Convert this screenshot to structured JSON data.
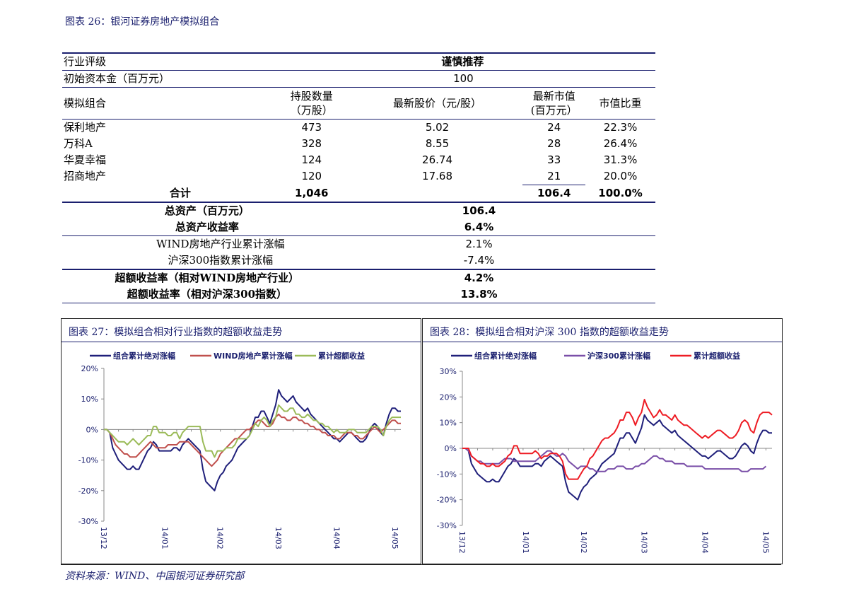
{
  "header": {
    "title": "图表 26：银河证券房地产模拟组合"
  },
  "portfolio": {
    "rating_label": "行业评级",
    "rating_value": "谨慎推荐",
    "capital_label": "初始资本金（百万元）",
    "capital_value": "100",
    "columns": {
      "portfolio": "模拟组合",
      "shares_line1": "持股数量",
      "shares_line2": "（万股）",
      "price": "最新股价（元/股）",
      "mktval_line1": "最新市值",
      "mktval_line2": "(百万元）",
      "weight": "市值比重"
    },
    "rows": [
      {
        "name": "保利地产",
        "shares": "473",
        "price": "5.02",
        "mktval": "24",
        "weight": "22.3%"
      },
      {
        "name": "万科A",
        "shares": "328",
        "price": "8.55",
        "mktval": "28",
        "weight": "26.4%"
      },
      {
        "name": "华夏幸福",
        "shares": "124",
        "price": "26.74",
        "mktval": "33",
        "weight": "31.3%"
      },
      {
        "name": "招商地产",
        "shares": "120",
        "price": "17.68",
        "mktval": "21",
        "weight": "20.0%"
      }
    ],
    "total": {
      "label": "合计",
      "shares": "1,046",
      "mktval": "106.4",
      "weight": "100.0%"
    },
    "summary": [
      {
        "label": "总资产（百万元）",
        "value": "106.4",
        "bold": true
      },
      {
        "label": "总资产收益率",
        "value": "6.4%",
        "bold": true
      },
      {
        "label": "WIND房地产行业累计涨幅",
        "value": "2.1%",
        "bold": false
      },
      {
        "label": "沪深300指数累计涨幅",
        "value": "-7.4%",
        "bold": false
      },
      {
        "label": "超额收益率（相对WIND房地产行业）",
        "value": "4.2%",
        "bold": true
      },
      {
        "label": "超额收益率（相对沪深300指数）",
        "value": "13.8%",
        "bold": true
      }
    ]
  },
  "source": "资料来源：WIND、中国银河证券研究部",
  "chart_data": [
    {
      "type": "line",
      "title": "图表 27：模拟组合相对行业指数的超额收益走势",
      "ylim": [
        -30,
        20
      ],
      "yticks": [
        "20%",
        "10%",
        "0%",
        "-10%",
        "-20%",
        "-30%"
      ],
      "ytick_values": [
        20,
        10,
        0,
        -10,
        -20,
        -30
      ],
      "xtick_labels": [
        "13/12",
        "14/01",
        "14/02",
        "14/03",
        "14/04",
        "14/05"
      ],
      "xtick_positions": [
        0,
        21,
        40,
        60,
        80,
        100
      ],
      "legend_position": "top",
      "series": [
        {
          "name": "组合累计绝对涨幅",
          "color": "#1f1f7a",
          "values": [
            0,
            0,
            -1,
            -6,
            -8,
            -10,
            -11,
            -12,
            -13,
            -13,
            -12,
            -13,
            -13,
            -11,
            -9,
            -7,
            -6,
            -4,
            -5,
            -7,
            -7,
            -7,
            -7,
            -7,
            -6,
            -6,
            -7,
            -5,
            -4,
            -3,
            -4,
            -5,
            -6,
            -7,
            -13,
            -17,
            -18,
            -19,
            -20,
            -17,
            -15,
            -14,
            -12,
            -11,
            -10,
            -8,
            -6,
            -5,
            -4,
            -3,
            -2,
            1,
            4,
            4,
            6,
            6,
            4,
            2,
            5,
            8,
            13,
            11,
            10,
            9,
            10,
            11,
            9,
            8,
            7,
            6,
            7,
            5,
            4,
            3,
            2,
            1,
            0,
            -1,
            -2,
            -3,
            -3,
            -4,
            -3,
            -2,
            -1,
            -1,
            -2,
            -3,
            -4,
            -4,
            -3,
            -1,
            1,
            2,
            1,
            -1,
            -2,
            2,
            5,
            7,
            7,
            6,
            6
          ]
        },
        {
          "name": "WIND房地产累计涨幅",
          "color": "#c0504d",
          "values": [
            0,
            0,
            -1,
            -3,
            -5,
            -6,
            -7,
            -8,
            -8,
            -9,
            -9,
            -9,
            -8,
            -7,
            -6,
            -5,
            -4,
            -5,
            -6,
            -6,
            -6,
            -6,
            -5,
            -5,
            -5,
            -5,
            -4,
            -4,
            -4,
            -4,
            -5,
            -6,
            -7,
            -8,
            -9,
            -10,
            -11,
            -12,
            -11,
            -10,
            -8,
            -7,
            -6,
            -5,
            -4,
            -3,
            -3,
            -2,
            -1,
            0,
            0,
            1,
            2,
            3,
            3,
            2,
            1,
            1,
            2,
            4,
            5,
            4,
            4,
            3,
            3,
            4,
            4,
            3,
            3,
            2,
            2,
            1,
            1,
            0,
            0,
            -1,
            -1,
            -2,
            -2,
            -2,
            -3,
            -3,
            -2,
            -1,
            -1,
            -1,
            -2,
            -2,
            -3,
            -3,
            -2,
            -1,
            0,
            1,
            0,
            -1,
            0,
            1,
            2,
            3,
            3,
            2,
            2
          ]
        },
        {
          "name": "累计超额收益",
          "color": "#9bbb59",
          "values": [
            0,
            0,
            -1,
            -2,
            -3,
            -4,
            -4,
            -4,
            -5,
            -4,
            -3,
            -4,
            -5,
            -4,
            -3,
            -2,
            -2,
            1,
            1,
            -1,
            -1,
            -1,
            -2,
            -2,
            -1,
            -1,
            -3,
            -1,
            0,
            1,
            1,
            1,
            1,
            1,
            -4,
            -7,
            -7,
            -7,
            -9,
            -7,
            -7,
            -7,
            -6,
            -6,
            -6,
            -5,
            -3,
            -3,
            -3,
            -3,
            -2,
            0,
            2,
            1,
            3,
            4,
            3,
            1,
            3,
            4,
            8,
            7,
            6,
            6,
            7,
            7,
            5,
            5,
            4,
            4,
            5,
            4,
            3,
            3,
            2,
            2,
            1,
            1,
            0,
            -1,
            0,
            -1,
            -1,
            -1,
            0,
            0,
            0,
            -1,
            -1,
            -1,
            -1,
            0,
            1,
            1,
            1,
            0,
            -2,
            1,
            3,
            4,
            4,
            4,
            4
          ]
        }
      ]
    },
    {
      "type": "line",
      "title": "图表 28：模拟组合相对沪深 300 指数的超额收益走势",
      "ylim": [
        -30,
        30
      ],
      "yticks": [
        "30%",
        "20%",
        "10%",
        "0%",
        "-10%",
        "-20%",
        "-30%"
      ],
      "ytick_values": [
        30,
        20,
        10,
        0,
        -10,
        -20,
        -30
      ],
      "xtick_labels": [
        "13/12",
        "14/01",
        "14/02",
        "14/03",
        "14/04",
        "14/05"
      ],
      "xtick_positions": [
        0,
        21,
        40,
        60,
        80,
        100
      ],
      "legend_position": "top",
      "series": [
        {
          "name": "组合累计绝对涨幅",
          "color": "#1f1f7a",
          "values": [
            0,
            0,
            -1,
            -6,
            -8,
            -10,
            -11,
            -12,
            -13,
            -13,
            -12,
            -13,
            -13,
            -11,
            -9,
            -7,
            -6,
            -4,
            -5,
            -7,
            -7,
            -7,
            -7,
            -7,
            -6,
            -6,
            -7,
            -5,
            -4,
            -3,
            -4,
            -5,
            -6,
            -7,
            -13,
            -17,
            -18,
            -19,
            -20,
            -17,
            -15,
            -14,
            -12,
            -11,
            -10,
            -8,
            -6,
            -5,
            -4,
            -3,
            -2,
            1,
            4,
            4,
            6,
            6,
            4,
            2,
            5,
            8,
            13,
            11,
            10,
            9,
            10,
            11,
            9,
            8,
            7,
            6,
            7,
            5,
            4,
            3,
            2,
            1,
            0,
            -1,
            -2,
            -3,
            -3,
            -4,
            -3,
            -2,
            -1,
            -1,
            -2,
            -3,
            -4,
            -4,
            -3,
            -1,
            1,
            2,
            1,
            -1,
            -2,
            2,
            5,
            7,
            7,
            6,
            6
          ]
        },
        {
          "name": "沪深300累计涨幅",
          "color": "#7a4fa8",
          "values": [
            0,
            0,
            -1,
            -3,
            -4,
            -5,
            -5,
            -6,
            -6,
            -6,
            -6,
            -6,
            -6,
            -5,
            -4,
            -4,
            -4,
            -5,
            -5,
            -5,
            -5,
            -5,
            -5,
            -5,
            -5,
            -4,
            -3,
            -2,
            -1,
            -1,
            -2,
            -3,
            -3,
            -2,
            -3,
            -5,
            -6,
            -7,
            -8,
            -7,
            -7,
            -7,
            -8,
            -8,
            -9,
            -9,
            -9,
            -9,
            -8,
            -8,
            -8,
            -7,
            -7,
            -7,
            -8,
            -8,
            -8,
            -7,
            -7,
            -6,
            -6,
            -5,
            -4,
            -3,
            -3,
            -4,
            -4,
            -5,
            -5,
            -5,
            -6,
            -6,
            -6,
            -6,
            -7,
            -7,
            -7,
            -7,
            -7,
            -7,
            -8,
            -8,
            -8,
            -8,
            -8,
            -8,
            -8,
            -8,
            -8,
            -8,
            -8,
            -8,
            -9,
            -9,
            -9,
            -8,
            -8,
            -8,
            -8,
            -8,
            -7
          ]
        },
        {
          "name": "累计超额收益",
          "color": "#ee1c24",
          "values": [
            0,
            0,
            0,
            -3,
            -4,
            -5,
            -6,
            -6,
            -7,
            -7,
            -6,
            -7,
            -7,
            -6,
            -5,
            -3,
            -2,
            1,
            1,
            -2,
            -2,
            -2,
            -2,
            -2,
            -1,
            -2,
            -4,
            -3,
            -3,
            -2,
            -2,
            -2,
            -3,
            -5,
            -10,
            -12,
            -12,
            -12,
            -12,
            -10,
            -8,
            -7,
            -4,
            -3,
            -1,
            1,
            3,
            4,
            4,
            5,
            6,
            8,
            11,
            11,
            14,
            14,
            12,
            9,
            12,
            14,
            19,
            16,
            14,
            12,
            13,
            15,
            13,
            13,
            12,
            11,
            13,
            11,
            10,
            9,
            9,
            8,
            7,
            6,
            5,
            4,
            5,
            4,
            5,
            6,
            7,
            7,
            6,
            5,
            4,
            4,
            5,
            7,
            10,
            11,
            10,
            7,
            6,
            10,
            13,
            14,
            14,
            14,
            13
          ]
        }
      ]
    }
  ]
}
